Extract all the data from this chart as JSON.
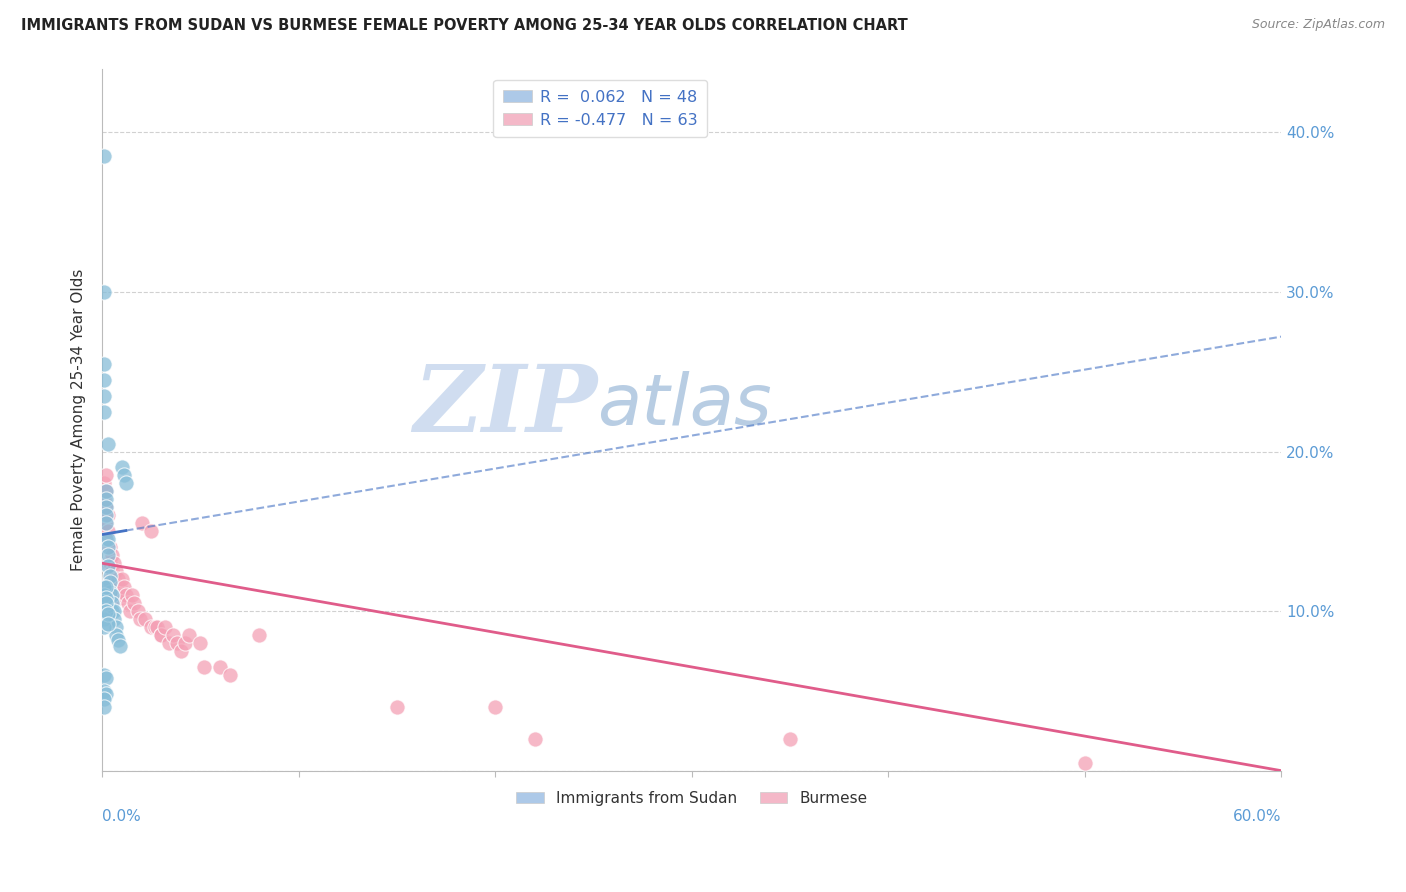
{
  "title": "IMMIGRANTS FROM SUDAN VS BURMESE FEMALE POVERTY AMONG 25-34 YEAR OLDS CORRELATION CHART",
  "source": "Source: ZipAtlas.com",
  "ylabel": "Female Poverty Among 25-34 Year Olds",
  "series1_label": "Immigrants from Sudan",
  "series2_label": "Burmese",
  "series1_color": "#87bdd8",
  "series2_color": "#f4a0b5",
  "series1_line_color": "#4472c4",
  "series2_line_color": "#e05c8a",
  "xlim": [
    0.0,
    0.6
  ],
  "ylim": [
    0.0,
    0.44
  ],
  "legend1_label": "R =  0.062   N = 48",
  "legend2_label": "R = -0.477   N = 63",
  "legend1_color": "#adc9e8",
  "legend2_color": "#f4b8c8",
  "legend_text_color": "#4472c4",
  "ytick_values": [
    0.0,
    0.1,
    0.2,
    0.3,
    0.4
  ],
  "ytick_labels": [
    "",
    "10.0%",
    "20.0%",
    "30.0%",
    "40.0%"
  ],
  "xtick_values": [
    0.0,
    0.1,
    0.2,
    0.3,
    0.4,
    0.5,
    0.6
  ],
  "watermark_zip": "ZIP",
  "watermark_atlas": "atlas",
  "sudan_x": [
    0.001,
    0.001,
    0.001,
    0.003,
    0.001,
    0.001,
    0.001,
    0.002,
    0.002,
    0.002,
    0.002,
    0.002,
    0.002,
    0.003,
    0.003,
    0.003,
    0.003,
    0.004,
    0.004,
    0.004,
    0.005,
    0.005,
    0.005,
    0.006,
    0.006,
    0.007,
    0.007,
    0.008,
    0.009,
    0.01,
    0.011,
    0.012,
    0.001,
    0.001,
    0.002,
    0.002,
    0.002,
    0.001,
    0.001,
    0.002,
    0.003,
    0.003,
    0.001,
    0.002,
    0.001,
    0.002,
    0.001,
    0.001
  ],
  "sudan_y": [
    0.385,
    0.3,
    0.255,
    0.205,
    0.245,
    0.235,
    0.225,
    0.175,
    0.17,
    0.165,
    0.16,
    0.155,
    0.145,
    0.145,
    0.14,
    0.135,
    0.128,
    0.122,
    0.118,
    0.112,
    0.11,
    0.105,
    0.1,
    0.1,
    0.095,
    0.09,
    0.085,
    0.082,
    0.078,
    0.19,
    0.185,
    0.18,
    0.115,
    0.11,
    0.115,
    0.108,
    0.105,
    0.095,
    0.09,
    0.1,
    0.098,
    0.092,
    0.06,
    0.058,
    0.05,
    0.048,
    0.045,
    0.04
  ],
  "burmese_x": [
    0.001,
    0.001,
    0.001,
    0.001,
    0.001,
    0.002,
    0.002,
    0.002,
    0.002,
    0.002,
    0.003,
    0.003,
    0.003,
    0.003,
    0.004,
    0.004,
    0.004,
    0.005,
    0.005,
    0.005,
    0.006,
    0.006,
    0.007,
    0.007,
    0.008,
    0.008,
    0.009,
    0.009,
    0.01,
    0.01,
    0.011,
    0.012,
    0.013,
    0.014,
    0.015,
    0.016,
    0.018,
    0.019,
    0.02,
    0.022,
    0.025,
    0.025,
    0.027,
    0.028,
    0.03,
    0.03,
    0.032,
    0.034,
    0.036,
    0.038,
    0.04,
    0.042,
    0.044,
    0.05,
    0.052,
    0.06,
    0.065,
    0.08,
    0.15,
    0.2,
    0.22,
    0.35,
    0.5
  ],
  "burmese_y": [
    0.18,
    0.17,
    0.16,
    0.155,
    0.145,
    0.185,
    0.175,
    0.165,
    0.155,
    0.145,
    0.16,
    0.15,
    0.14,
    0.13,
    0.14,
    0.13,
    0.12,
    0.135,
    0.125,
    0.115,
    0.13,
    0.12,
    0.125,
    0.115,
    0.12,
    0.11,
    0.115,
    0.108,
    0.12,
    0.11,
    0.115,
    0.11,
    0.105,
    0.1,
    0.11,
    0.105,
    0.1,
    0.095,
    0.155,
    0.095,
    0.15,
    0.09,
    0.09,
    0.09,
    0.085,
    0.085,
    0.09,
    0.08,
    0.085,
    0.08,
    0.075,
    0.08,
    0.085,
    0.08,
    0.065,
    0.065,
    0.06,
    0.085,
    0.04,
    0.04,
    0.02,
    0.02,
    0.005
  ]
}
